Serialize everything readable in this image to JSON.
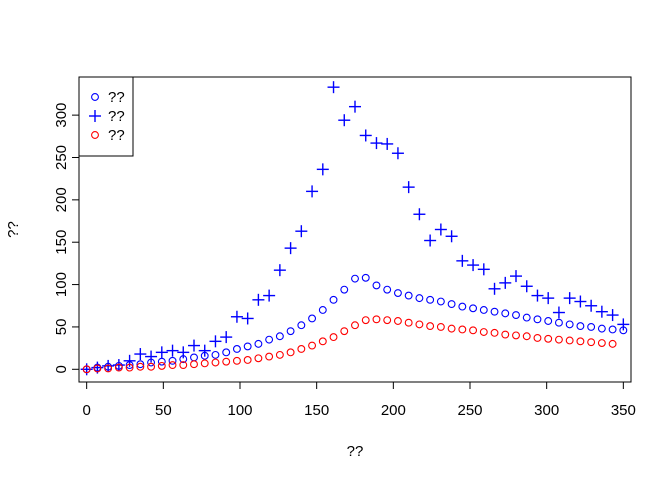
{
  "chart_data": {
    "type": "scatter",
    "title": "",
    "xlabel": "??",
    "ylabel": "??",
    "xlim": [
      -5,
      355
    ],
    "ylim": [
      -15,
      345
    ],
    "x_ticks": [
      "0",
      "50",
      "100",
      "150",
      "200",
      "250",
      "300",
      "350"
    ],
    "y_ticks": [
      "0",
      "50",
      "100",
      "150",
      "200",
      "250",
      "300"
    ],
    "grid": false,
    "legend_position": "top-left",
    "series": [
      {
        "name": "??",
        "marker": "circle",
        "color": "#0000ff",
        "points": [
          [
            0,
            0
          ],
          [
            7,
            2
          ],
          [
            14,
            3
          ],
          [
            21,
            4
          ],
          [
            28,
            5
          ],
          [
            35,
            6
          ],
          [
            42,
            8
          ],
          [
            49,
            9
          ],
          [
            56,
            10
          ],
          [
            63,
            12
          ],
          [
            70,
            14
          ],
          [
            77,
            16
          ],
          [
            84,
            17
          ],
          [
            91,
            20
          ],
          [
            98,
            24
          ],
          [
            105,
            27
          ],
          [
            112,
            30
          ],
          [
            119,
            35
          ],
          [
            126,
            39
          ],
          [
            133,
            45
          ],
          [
            140,
            52
          ],
          [
            147,
            60
          ],
          [
            154,
            70
          ],
          [
            161,
            82
          ],
          [
            168,
            94
          ],
          [
            175,
            107
          ],
          [
            182,
            108
          ],
          [
            189,
            99
          ],
          [
            196,
            94
          ],
          [
            203,
            90
          ],
          [
            210,
            87
          ],
          [
            217,
            84
          ],
          [
            224,
            82
          ],
          [
            231,
            80
          ],
          [
            238,
            77
          ],
          [
            245,
            74
          ],
          [
            252,
            72
          ],
          [
            259,
            70
          ],
          [
            266,
            68
          ],
          [
            273,
            66
          ],
          [
            280,
            64
          ],
          [
            287,
            61
          ],
          [
            294,
            59
          ],
          [
            301,
            57
          ],
          [
            308,
            55
          ],
          [
            315,
            53
          ],
          [
            322,
            51
          ],
          [
            329,
            50
          ],
          [
            336,
            48
          ],
          [
            343,
            47
          ],
          [
            350,
            46
          ]
        ]
      },
      {
        "name": "??",
        "marker": "plus",
        "color": "#0000ff",
        "points": [
          [
            0,
            0
          ],
          [
            7,
            2
          ],
          [
            14,
            4
          ],
          [
            21,
            5
          ],
          [
            28,
            10
          ],
          [
            35,
            18
          ],
          [
            42,
            15
          ],
          [
            49,
            20
          ],
          [
            56,
            22
          ],
          [
            63,
            20
          ],
          [
            70,
            28
          ],
          [
            77,
            22
          ],
          [
            84,
            33
          ],
          [
            91,
            38
          ],
          [
            98,
            62
          ],
          [
            105,
            60
          ],
          [
            112,
            82
          ],
          [
            119,
            87
          ],
          [
            126,
            117
          ],
          [
            133,
            143
          ],
          [
            140,
            163
          ],
          [
            147,
            210
          ],
          [
            154,
            236
          ],
          [
            161,
            333
          ],
          [
            168,
            294
          ],
          [
            175,
            310
          ],
          [
            182,
            276
          ],
          [
            189,
            267
          ],
          [
            196,
            266
          ],
          [
            203,
            255
          ],
          [
            210,
            215
          ],
          [
            217,
            183
          ],
          [
            224,
            152
          ],
          [
            231,
            165
          ],
          [
            238,
            157
          ],
          [
            245,
            128
          ],
          [
            252,
            123
          ],
          [
            259,
            118
          ],
          [
            266,
            95
          ],
          [
            273,
            102
          ],
          [
            280,
            110
          ],
          [
            287,
            98
          ],
          [
            294,
            87
          ],
          [
            301,
            84
          ],
          [
            308,
            67
          ],
          [
            315,
            84
          ],
          [
            322,
            80
          ],
          [
            329,
            75
          ],
          [
            336,
            68
          ],
          [
            343,
            64
          ],
          [
            350,
            53
          ]
        ]
      },
      {
        "name": "??",
        "marker": "circle",
        "color": "#ff0000",
        "points": [
          [
            0,
            0
          ],
          [
            7,
            1
          ],
          [
            14,
            1
          ],
          [
            21,
            2
          ],
          [
            28,
            2
          ],
          [
            35,
            3
          ],
          [
            42,
            3
          ],
          [
            49,
            4
          ],
          [
            56,
            5
          ],
          [
            63,
            5
          ],
          [
            70,
            6
          ],
          [
            77,
            7
          ],
          [
            84,
            8
          ],
          [
            91,
            9
          ],
          [
            98,
            10
          ],
          [
            105,
            11
          ],
          [
            112,
            13
          ],
          [
            119,
            15
          ],
          [
            126,
            17
          ],
          [
            133,
            20
          ],
          [
            140,
            24
          ],
          [
            147,
            28
          ],
          [
            154,
            33
          ],
          [
            161,
            38
          ],
          [
            168,
            45
          ],
          [
            175,
            52
          ],
          [
            182,
            58
          ],
          [
            189,
            59
          ],
          [
            196,
            58
          ],
          [
            203,
            57
          ],
          [
            210,
            55
          ],
          [
            217,
            53
          ],
          [
            224,
            51
          ],
          [
            231,
            50
          ],
          [
            238,
            48
          ],
          [
            245,
            47
          ],
          [
            252,
            46
          ],
          [
            259,
            44
          ],
          [
            266,
            43
          ],
          [
            273,
            41
          ],
          [
            280,
            40
          ],
          [
            287,
            39
          ],
          [
            294,
            37
          ],
          [
            301,
            36
          ],
          [
            308,
            35
          ],
          [
            315,
            34
          ],
          [
            322,
            33
          ],
          [
            329,
            32
          ],
          [
            336,
            31
          ],
          [
            343,
            30
          ]
        ]
      }
    ]
  }
}
